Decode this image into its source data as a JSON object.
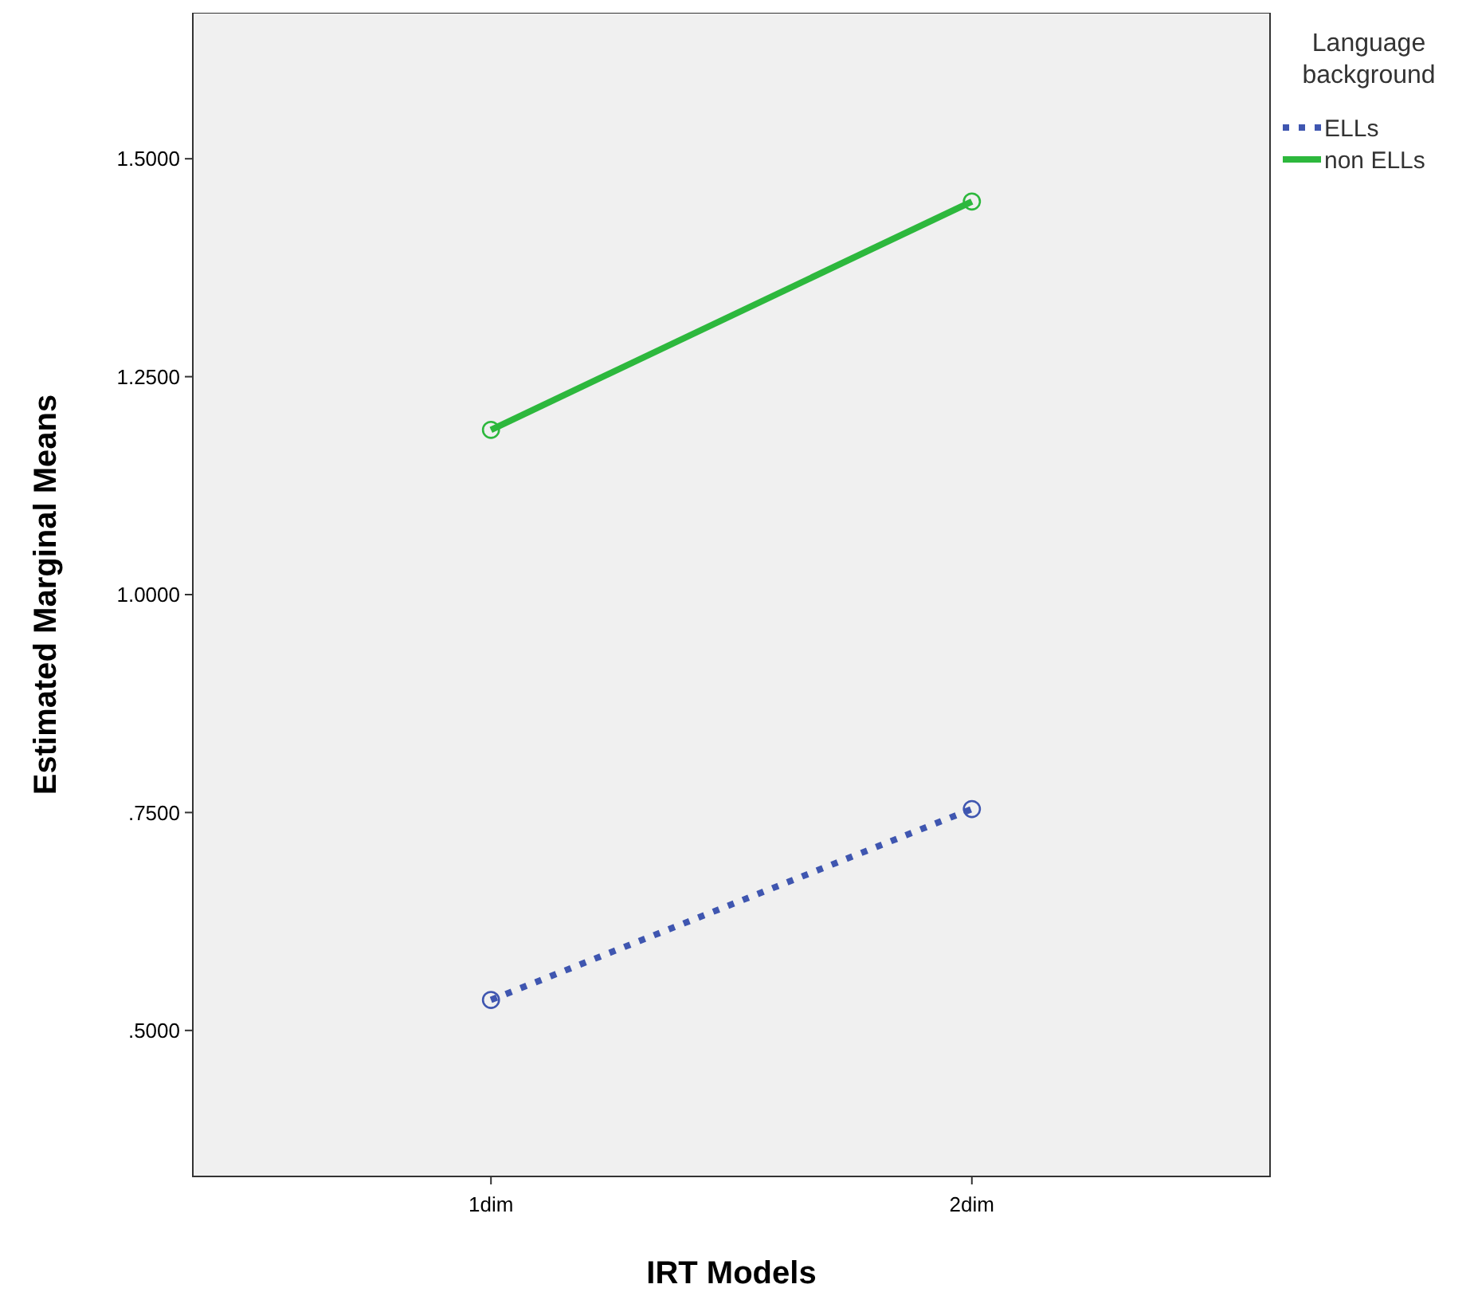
{
  "chart_data": {
    "type": "line",
    "xlabel": "IRT Models",
    "ylabel": "Estimated Marginal Means",
    "legend_title": "Language background",
    "categories": [
      "1dim",
      "2dim"
    ],
    "series": [
      {
        "name": "ELLs",
        "color": "#3f56b0",
        "values": [
          0.535,
          0.754
        ],
        "line_style": "dotted"
      },
      {
        "name": "non ELLs",
        "color": "#2db83d",
        "values": [
          1.189,
          1.451
        ],
        "line_style": "solid"
      }
    ],
    "ylim": [
      0.3325,
      1.6675
    ],
    "yticks": [
      {
        "value": 0.5,
        "label": ".5000"
      },
      {
        "value": 0.75,
        "label": ".7500"
      },
      {
        "value": 1,
        "label": "1.0000"
      },
      {
        "value": 1.25,
        "label": "1.2500"
      },
      {
        "value": 1.5,
        "label": "1.5000"
      }
    ],
    "marker": "circle",
    "grid": false,
    "legend": "top right"
  }
}
